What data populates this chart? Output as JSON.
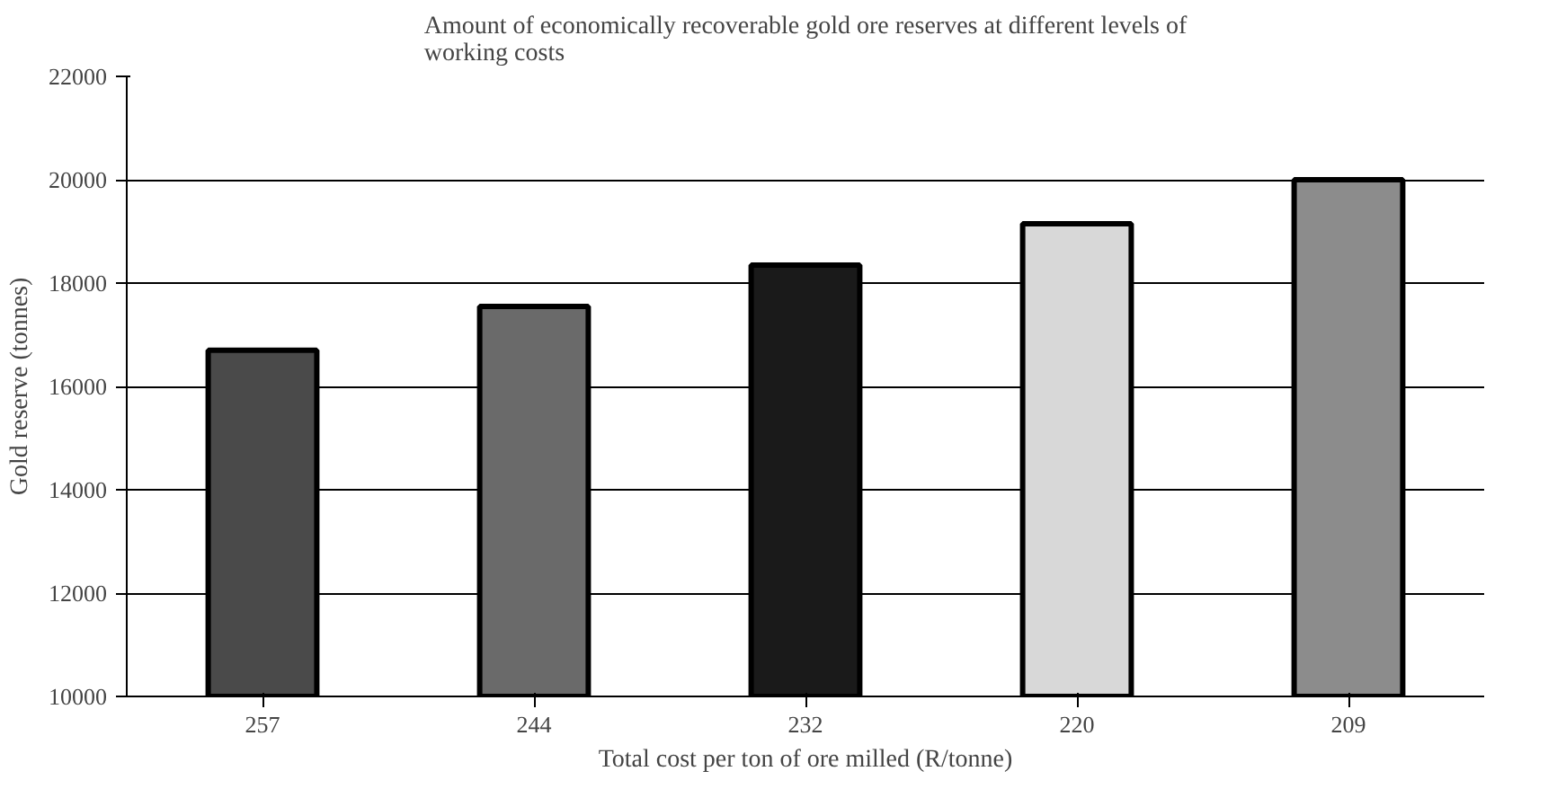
{
  "chart_data": {
    "type": "bar",
    "title": "Amount of economically recoverable gold ore reserves at different levels of working costs",
    "xlabel": "Total cost per ton of ore milled (R/tonne)",
    "ylabel": "Gold reserve (tonnes)",
    "categories": [
      "257",
      "244",
      "232",
      "220",
      "209"
    ],
    "values": [
      16700,
      17550,
      18350,
      19150,
      20000
    ],
    "colors": [
      "#4a4a4a",
      "#6a6a6a",
      "#1a1a1a",
      "#d8d8d8",
      "#8c8c8c"
    ],
    "ylim": [
      10000,
      22000
    ],
    "yticks": [
      10000,
      12000,
      14000,
      16000,
      18000,
      20000,
      22000
    ],
    "grid": "y"
  }
}
